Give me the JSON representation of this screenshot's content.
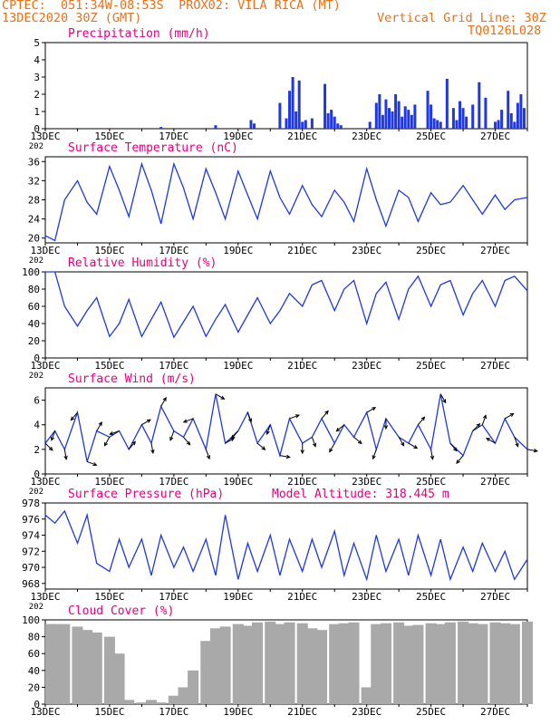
{
  "header": {
    "line1": "CPTEC:  051:34W-08:53S  PROX02: VILA RICA (MT)",
    "line2_left": "13DEC2020 30Z (GMT)",
    "line2_right": "Vertical Grid Line: 30Z",
    "line3_right": "TQ0126L028"
  },
  "colors": {
    "header": "#e8711a",
    "title": "#e6007e",
    "series": "#2038e0",
    "cloud": "#a9a9a9",
    "wind_arrow": "#000000",
    "axis": "#000000"
  },
  "chart_data": [
    {
      "type": "bar",
      "title": "Precipitation (mm/h)",
      "ylim": [
        0,
        5
      ],
      "yticks": [
        "0",
        "1",
        "2",
        "3",
        "4",
        "5"
      ],
      "xlabels": [
        "13DEC",
        "15DEC",
        "17DEC",
        "19DEC",
        "21DEC",
        "23DEC",
        "25DEC",
        "27DEC"
      ],
      "x_year_label": "202",
      "xlim": [
        13,
        28
      ],
      "x": [
        16.6,
        18.3,
        19.4,
        19.5,
        20.3,
        20.5,
        20.6,
        20.7,
        20.8,
        20.9,
        21.0,
        21.1,
        21.3,
        21.7,
        21.8,
        21.9,
        22.0,
        22.1,
        22.2,
        23.1,
        23.3,
        23.4,
        23.5,
        23.6,
        23.7,
        23.8,
        23.9,
        24.0,
        24.1,
        24.2,
        24.3,
        24.4,
        24.5,
        24.9,
        25.0,
        25.1,
        25.2,
        25.3,
        25.5,
        25.7,
        25.8,
        25.9,
        26.0,
        26.1,
        26.3,
        26.5,
        26.7,
        27.0,
        27.1,
        27.2,
        27.4,
        27.5,
        27.6,
        27.7,
        27.8,
        27.9
      ],
      "values": [
        0.1,
        0.2,
        0.5,
        0.3,
        1.5,
        0.6,
        2.2,
        3.0,
        1.0,
        2.8,
        0.4,
        0.5,
        0.6,
        2.6,
        0.9,
        1.1,
        0.7,
        0.3,
        0.2,
        0.4,
        1.5,
        2.0,
        0.8,
        1.7,
        1.2,
        1.0,
        2.0,
        1.6,
        0.7,
        1.3,
        1.1,
        0.8,
        1.4,
        2.2,
        1.4,
        0.6,
        0.5,
        0.4,
        2.9,
        1.2,
        0.5,
        1.6,
        1.2,
        0.7,
        1.4,
        2.7,
        1.8,
        0.4,
        0.5,
        1.1,
        2.2,
        0.9,
        0.4,
        1.5,
        2.0,
        1.2
      ]
    },
    {
      "type": "line",
      "title": "Surface Temperature (nC)",
      "ylim": [
        19,
        37
      ],
      "yticks": [
        "20",
        "24",
        "28",
        "32",
        "36"
      ],
      "xlabels": [
        "13DEC",
        "15DEC",
        "17DEC",
        "19DEC",
        "21DEC",
        "23DEC",
        "25DEC",
        "27DEC"
      ],
      "x_year_label": "202",
      "xlim": [
        13,
        28
      ],
      "x": [
        13.0,
        13.3,
        13.6,
        14.0,
        14.3,
        14.6,
        15.0,
        15.3,
        15.6,
        16.0,
        16.3,
        16.6,
        17.0,
        17.3,
        17.6,
        18.0,
        18.3,
        18.6,
        19.0,
        19.3,
        19.6,
        20.0,
        20.3,
        20.6,
        21.0,
        21.3,
        21.6,
        22.0,
        22.3,
        22.6,
        23.0,
        23.3,
        23.6,
        24.0,
        24.3,
        24.6,
        25.0,
        25.3,
        25.6,
        26.0,
        26.3,
        26.6,
        27.0,
        27.3,
        27.6,
        28.0
      ],
      "values": [
        20.5,
        19.5,
        28.0,
        32.0,
        27.5,
        25.0,
        35.0,
        30.0,
        24.5,
        35.5,
        30.0,
        23.0,
        35.5,
        30.5,
        24.0,
        34.5,
        29.5,
        24.0,
        34.0,
        29.0,
        24.0,
        34.0,
        28.5,
        25.0,
        31.0,
        27.0,
        24.5,
        30.0,
        27.5,
        23.5,
        34.5,
        28.0,
        22.5,
        30.0,
        28.5,
        23.5,
        29.5,
        27.0,
        27.5,
        31.0,
        28.0,
        25.0,
        29.0,
        26.0,
        28.0,
        28.5
      ]
    },
    {
      "type": "line",
      "title": "Relative Humidity (%)",
      "ylim": [
        0,
        100
      ],
      "yticks": [
        "0",
        "20",
        "40",
        "60",
        "80",
        "100"
      ],
      "xlabels": [
        "13DEC",
        "15DEC",
        "17DEC",
        "19DEC",
        "21DEC",
        "23DEC",
        "25DEC",
        "27DEC"
      ],
      "x_year_label": "202",
      "xlim": [
        13,
        28
      ],
      "x": [
        13.0,
        13.3,
        13.6,
        14.0,
        14.3,
        14.6,
        15.0,
        15.3,
        15.6,
        16.0,
        16.3,
        16.6,
        17.0,
        17.3,
        17.6,
        18.0,
        18.3,
        18.6,
        19.0,
        19.3,
        19.6,
        20.0,
        20.3,
        20.6,
        21.0,
        21.3,
        21.6,
        22.0,
        22.3,
        22.6,
        23.0,
        23.3,
        23.6,
        24.0,
        24.3,
        24.6,
        25.0,
        25.3,
        25.6,
        26.0,
        26.3,
        26.6,
        27.0,
        27.3,
        27.6,
        28.0
      ],
      "values": [
        100.0,
        100.0,
        60.0,
        37.0,
        55.0,
        70.0,
        25.0,
        40.0,
        68.0,
        25.0,
        45.0,
        65.0,
        24.0,
        42.0,
        60.0,
        25.0,
        45.0,
        62.0,
        30.0,
        50.0,
        70.0,
        40.0,
        55.0,
        75.0,
        60.0,
        85.0,
        90.0,
        55.0,
        80.0,
        90.0,
        40.0,
        75.0,
        88.0,
        45.0,
        80.0,
        95.0,
        60.0,
        85.0,
        90.0,
        50.0,
        75.0,
        90.0,
        60.0,
        90.0,
        95.0,
        78.0
      ]
    },
    {
      "type": "line",
      "title": "Surface Wind (m/s)",
      "ylim": [
        0,
        7
      ],
      "yticks": [
        "0",
        "2",
        "4",
        "6"
      ],
      "xlabels": [
        "13DEC",
        "15DEC",
        "17DEC",
        "19DEC",
        "21DEC",
        "23DEC",
        "25DEC",
        "27DEC"
      ],
      "x_year_label": "202",
      "xlim": [
        13,
        28
      ],
      "x": [
        13.0,
        13.3,
        13.6,
        14.0,
        14.3,
        14.6,
        15.0,
        15.3,
        15.6,
        16.0,
        16.3,
        16.6,
        17.0,
        17.3,
        17.6,
        18.0,
        18.3,
        18.6,
        19.0,
        19.3,
        19.6,
        20.0,
        20.3,
        20.6,
        21.0,
        21.3,
        21.6,
        22.0,
        22.3,
        22.6,
        23.0,
        23.3,
        23.6,
        24.0,
        24.3,
        24.6,
        25.0,
        25.3,
        25.6,
        26.0,
        26.3,
        26.6,
        27.0,
        27.3,
        27.6,
        28.0
      ],
      "values": [
        2.5,
        3.5,
        2.0,
        5.0,
        1.0,
        3.5,
        3.0,
        3.5,
        2.0,
        4.0,
        2.5,
        5.5,
        3.5,
        3.0,
        4.5,
        2.0,
        6.5,
        2.5,
        3.5,
        5.0,
        2.5,
        4.0,
        1.5,
        4.5,
        2.5,
        3.0,
        4.5,
        2.5,
        4.0,
        3.0,
        5.0,
        2.0,
        4.5,
        3.0,
        2.5,
        4.0,
        2.0,
        6.5,
        2.5,
        1.5,
        3.5,
        4.0,
        2.5,
        4.5,
        3.0,
        2.0
      ],
      "wind_arrows_deg": [
        135,
        200,
        170,
        220,
        110,
        30,
        210,
        250,
        40,
        60,
        170,
        30,
        200,
        140,
        250,
        160,
        120,
        60,
        220,
        160,
        130,
        200,
        100,
        70,
        180,
        160,
        40,
        210,
        230,
        130,
        60,
        200,
        180,
        150,
        120,
        40,
        170,
        150,
        140,
        220,
        45,
        20,
        300,
        60,
        160,
        100
      ]
    },
    {
      "type": "line",
      "title": "Surface Pressure (hPa)",
      "annotation": "Model Altitude: 318.445 m",
      "ylim": [
        967.3,
        978
      ],
      "yticks": [
        "968",
        "970",
        "972",
        "974",
        "976",
        "978"
      ],
      "xlabels": [
        "13DEC",
        "15DEC",
        "17DEC",
        "19DEC",
        "21DEC",
        "23DEC",
        "25DEC",
        "27DEC"
      ],
      "x_year_label": "202",
      "xlim": [
        13,
        28
      ],
      "x": [
        13.0,
        13.3,
        13.6,
        14.0,
        14.3,
        14.6,
        15.0,
        15.3,
        15.6,
        16.0,
        16.3,
        16.6,
        17.0,
        17.3,
        17.6,
        18.0,
        18.3,
        18.6,
        19.0,
        19.3,
        19.6,
        20.0,
        20.3,
        20.6,
        21.0,
        21.3,
        21.6,
        22.0,
        22.3,
        22.6,
        23.0,
        23.3,
        23.6,
        24.0,
        24.3,
        24.6,
        25.0,
        25.3,
        25.6,
        26.0,
        26.3,
        26.6,
        27.0,
        27.3,
        27.6,
        28.0
      ],
      "values": [
        976.5,
        975.5,
        977.0,
        973.0,
        976.5,
        970.5,
        969.5,
        973.5,
        970.0,
        973.5,
        969.0,
        974.0,
        970.0,
        972.5,
        969.5,
        973.5,
        969.0,
        976.5,
        968.5,
        973.0,
        969.5,
        974.0,
        969.0,
        973.5,
        969.5,
        973.5,
        970.0,
        974.5,
        969.0,
        973.0,
        968.5,
        974.0,
        969.5,
        973.5,
        969.0,
        974.0,
        969.0,
        973.5,
        968.5,
        972.5,
        969.5,
        973.0,
        969.5,
        972.0,
        968.5,
        971.0
      ]
    },
    {
      "type": "bar",
      "title": "Cloud Cover (%)",
      "ylim": [
        0,
        100
      ],
      "yticks": [
        "0",
        "20",
        "40",
        "60",
        "80",
        "100"
      ],
      "xlabels": [
        "13DEC",
        "15DEC",
        "17DEC",
        "19DEC",
        "21DEC",
        "23DEC",
        "25DEC",
        "27DEC"
      ],
      "x_year_label": "",
      "xlim": [
        13,
        28
      ],
      "x": [
        13.0,
        13.3,
        13.6,
        14.0,
        14.3,
        14.6,
        15.0,
        15.3,
        15.6,
        16.0,
        16.3,
        16.6,
        17.0,
        17.3,
        17.6,
        18.0,
        18.3,
        18.6,
        19.0,
        19.3,
        19.6,
        20.0,
        20.3,
        20.6,
        21.0,
        21.3,
        21.6,
        22.0,
        22.3,
        22.6,
        23.0,
        23.3,
        23.6,
        24.0,
        24.3,
        24.6,
        25.0,
        25.3,
        25.6,
        26.0,
        26.3,
        26.6,
        27.0,
        27.3,
        27.6,
        28.0
      ],
      "values": [
        95,
        95,
        95,
        92,
        88,
        85,
        80,
        60,
        5,
        2,
        5,
        2,
        10,
        20,
        40,
        75,
        90,
        92,
        95,
        93,
        97,
        98,
        95,
        97,
        96,
        90,
        88,
        95,
        96,
        97,
        20,
        95,
        96,
        97,
        93,
        94,
        96,
        95,
        97,
        98,
        96,
        95,
        97,
        96,
        95,
        98
      ]
    }
  ]
}
